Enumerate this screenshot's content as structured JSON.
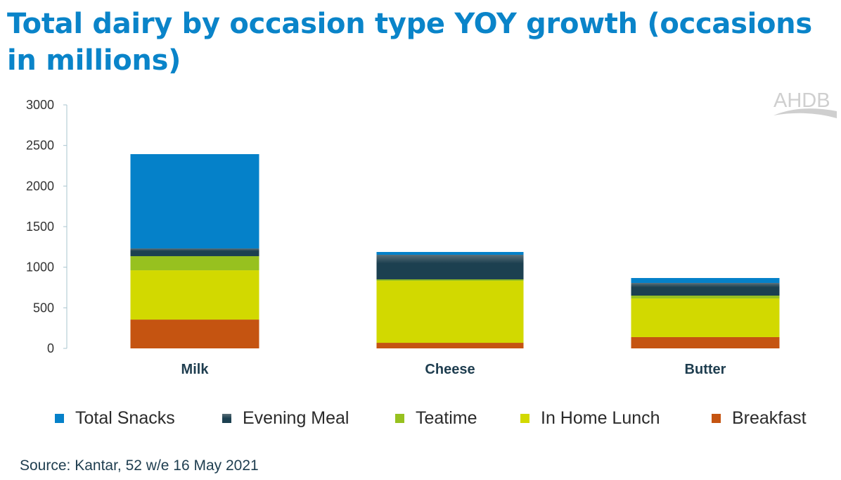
{
  "title": "Total dairy by occasion type YOY growth (occasions in millions)",
  "logo_text": "AHDB",
  "source": "Source: Kantar, 52 w/e 16 May 2021",
  "chart_data": {
    "type": "bar",
    "stacked": true,
    "title": "Total dairy by occasion type YOY growth (occasions in millions)",
    "xlabel": "",
    "ylabel": "",
    "ylim": [
      0,
      3000
    ],
    "yticks": [
      0,
      500,
      1000,
      1500,
      2000,
      2500,
      3000
    ],
    "categories": [
      "Milk",
      "Cheese",
      "Butter"
    ],
    "series": [
      {
        "name": "Breakfast",
        "color": "#c55411",
        "values": [
          355,
          69,
          139
        ]
      },
      {
        "name": "In Home Lunch",
        "color": "#d2d900",
        "values": [
          607,
          763,
          476
        ]
      },
      {
        "name": "Teatime",
        "color": "#97c11f",
        "values": [
          174,
          18,
          35
        ]
      },
      {
        "name": "Evening Meal",
        "color": "#1c4050",
        "values": [
          95,
          303,
          156
        ]
      },
      {
        "name": "Total Snacks",
        "color": "#0581c9",
        "values": [
          1162,
          35,
          61
        ]
      }
    ],
    "legend_order": [
      "Total Snacks",
      "Evening Meal",
      "Teatime",
      "In Home Lunch",
      "Breakfast"
    ],
    "legend_position": "bottom",
    "grid": false
  }
}
